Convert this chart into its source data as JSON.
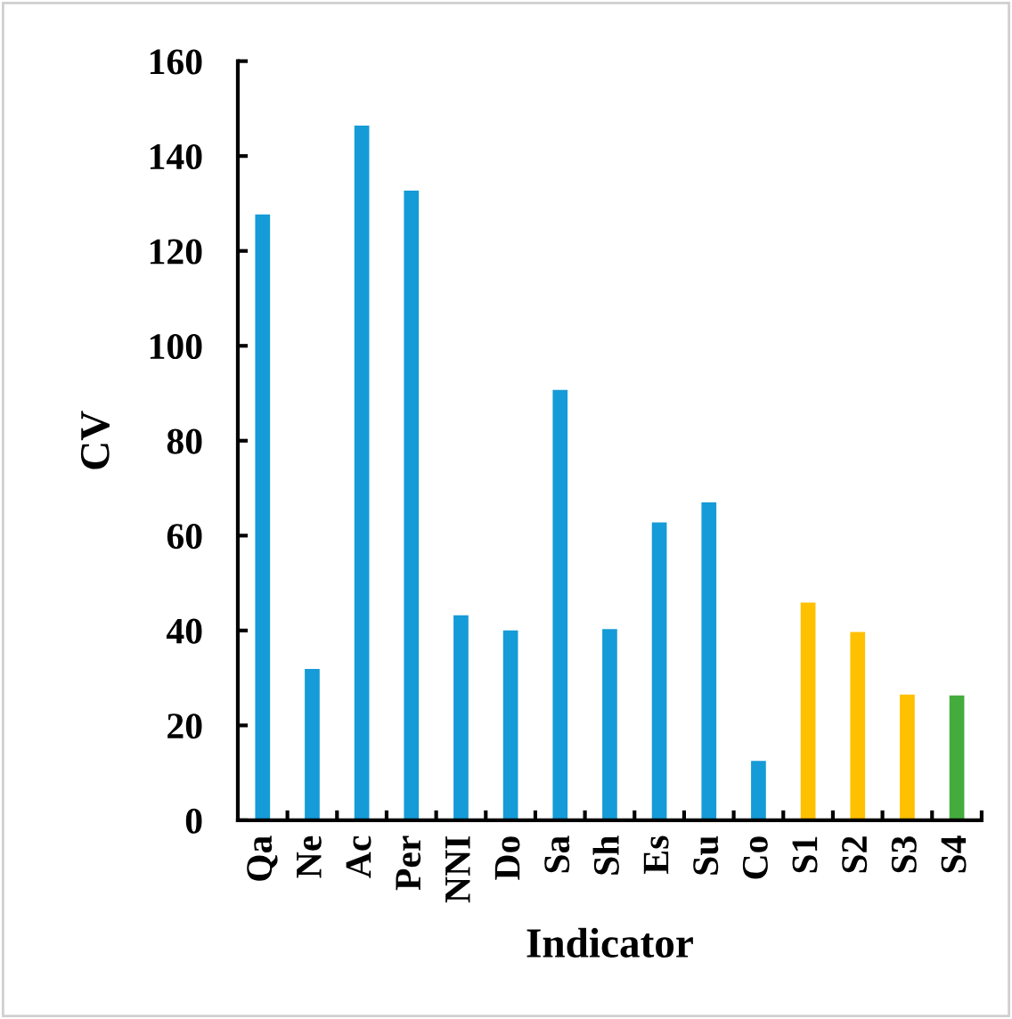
{
  "chart_data": {
    "type": "bar",
    "xlabel": "Indicator",
    "ylabel": "CV",
    "categories": [
      "Qa",
      "Ne",
      "Ac",
      "Per",
      "NNI",
      "Do",
      "Sa",
      "Sh",
      "Es",
      "Su",
      "Co",
      "S1",
      "S2",
      "S3",
      "S4"
    ],
    "values": [
      127.7,
      31.9,
      146.4,
      132.7,
      43.2,
      40.0,
      90.7,
      40.3,
      62.8,
      67.0,
      12.5,
      45.9,
      39.7,
      26.5,
      26.3
    ],
    "colors": [
      "#159bd7",
      "#159bd7",
      "#159bd7",
      "#159bd7",
      "#159bd7",
      "#159bd7",
      "#159bd7",
      "#159bd7",
      "#159bd7",
      "#159bd7",
      "#159bd7",
      "#ffc000",
      "#ffc000",
      "#ffc000",
      "#44ac3c"
    ],
    "ylim": [
      0,
      160
    ],
    "yticks": [
      0,
      20,
      40,
      60,
      80,
      100,
      120,
      140,
      160
    ]
  }
}
